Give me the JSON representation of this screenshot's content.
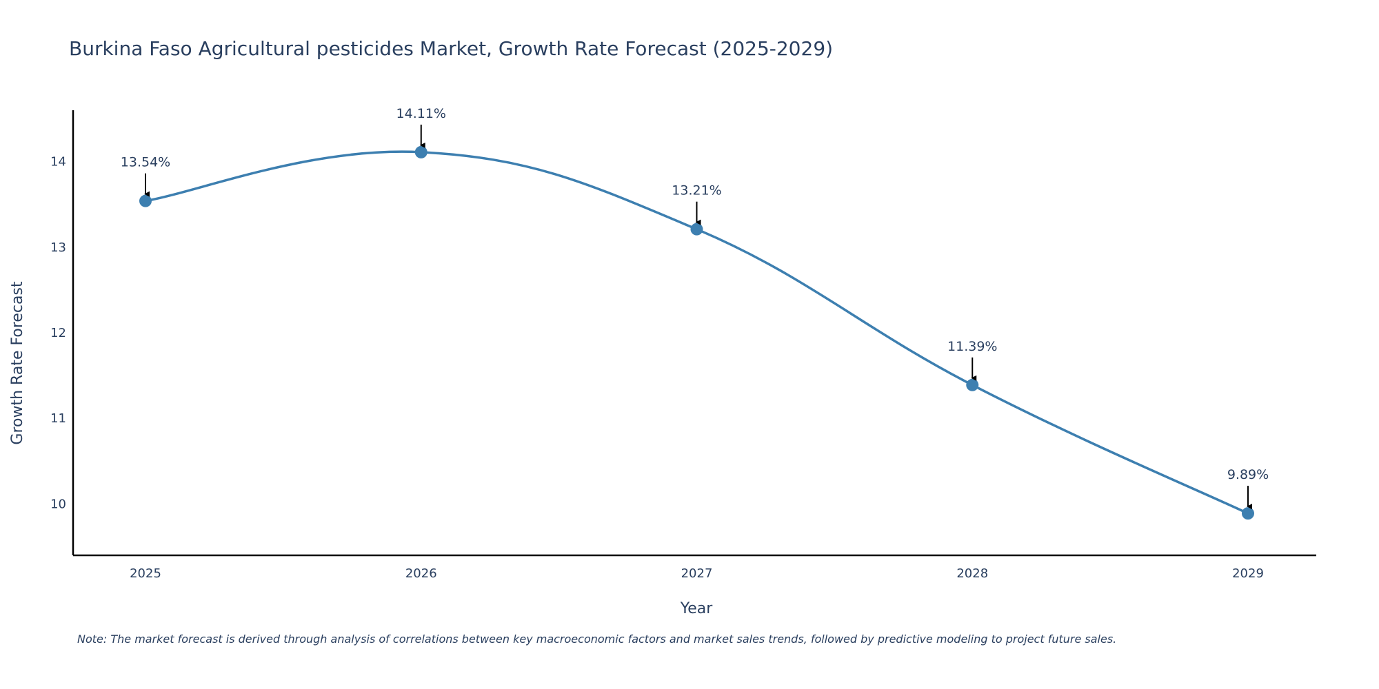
{
  "chart_data": {
    "type": "line",
    "title": "Burkina Faso Agricultural pesticides Market, Growth Rate Forecast (2025-2029)",
    "xlabel": "Year",
    "ylabel": "Growth Rate Forecast",
    "categories": [
      "2025",
      "2026",
      "2027",
      "2028",
      "2029"
    ],
    "values": [
      13.54,
      14.11,
      13.21,
      11.39,
      9.89
    ],
    "data_labels": [
      "13.54%",
      "14.11%",
      "13.21%",
      "11.39%",
      "9.89%"
    ],
    "yticks": [
      10,
      11,
      12,
      13,
      14
    ],
    "ylim": [
      9.4,
      14.6
    ],
    "line_color": "#3d7fb0",
    "marker_color": "#3d7fb0",
    "grid": false,
    "line_shape": "spline"
  },
  "note": "Note: The market forecast is derived through analysis of correlations between key macroeconomic factors and market sales trends, followed by predictive modeling to project future sales."
}
